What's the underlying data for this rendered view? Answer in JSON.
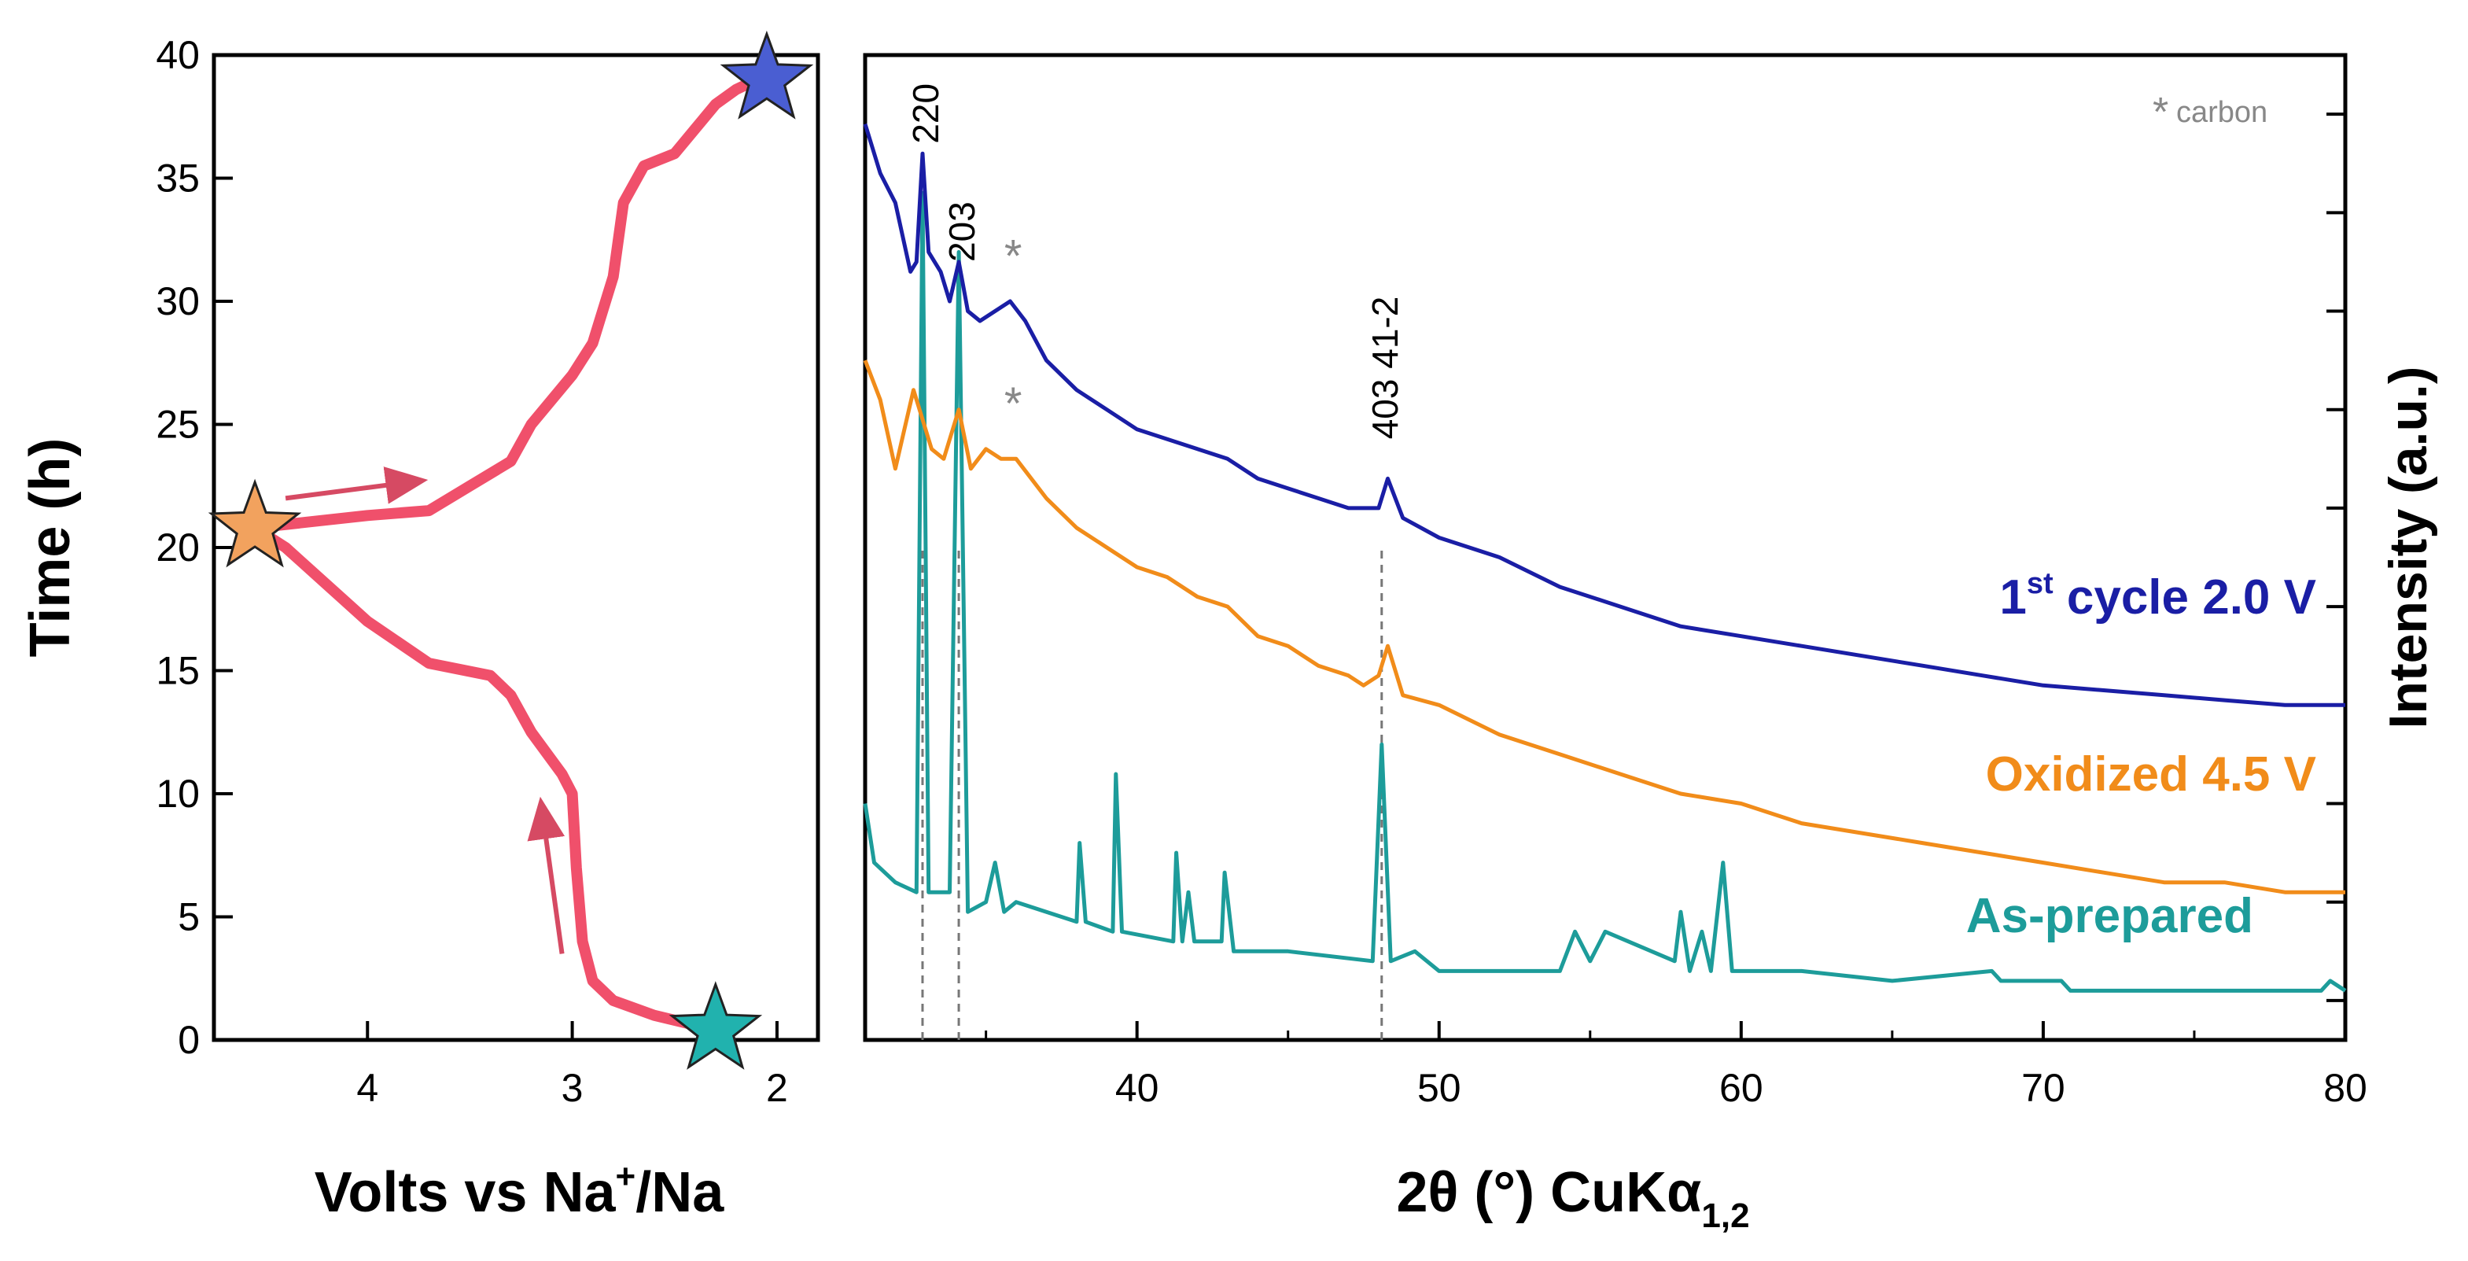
{
  "chart_data": [
    {
      "type": "line",
      "panel": "left",
      "xlabel": "Volts vs Na⁺/Na",
      "xlabel_parts": [
        "Volts vs Na",
        "+",
        "/Na"
      ],
      "ylabel": "Time (h)",
      "xlim": [
        4.75,
        1.8
      ],
      "ylim": [
        0,
        40
      ],
      "x_ticks": [
        4,
        3,
        2
      ],
      "x_tick_labels": [
        "4",
        "3",
        "2"
      ],
      "y_ticks": [
        0,
        5,
        10,
        15,
        20,
        25,
        30,
        35,
        40
      ],
      "y_tick_labels": [
        "0",
        "5",
        "10",
        "15",
        "20",
        "25",
        "30",
        "35",
        "40"
      ],
      "line_color": "#f0506b",
      "series": [
        {
          "name": "charge",
          "x": [
            2.3,
            2.6,
            2.8,
            2.9,
            2.95,
            2.98,
            3.0,
            3.05,
            3.2,
            3.3,
            3.4,
            3.7,
            4.0,
            4.2,
            4.4,
            4.55
          ],
          "y": [
            0.4,
            1.0,
            1.6,
            2.4,
            4.0,
            7.0,
            10.0,
            10.8,
            12.5,
            14.0,
            14.8,
            15.3,
            17.0,
            18.5,
            20.0,
            20.8
          ]
        },
        {
          "name": "discharge",
          "x": [
            4.55,
            4.0,
            3.7,
            3.5,
            3.3,
            3.2,
            3.0,
            2.9,
            2.8,
            2.75,
            2.65,
            2.5,
            2.4,
            2.3,
            2.2,
            2.1
          ],
          "y": [
            20.8,
            21.3,
            21.5,
            22.5,
            23.5,
            25.0,
            27.0,
            28.3,
            31.0,
            34.0,
            35.5,
            36.0,
            37.0,
            38.0,
            38.6,
            39.0
          ]
        }
      ],
      "markers": [
        {
          "name": "as-prepared-star",
          "x": 2.3,
          "y": 0.4,
          "color": "#21b2ae"
        },
        {
          "name": "oxidized-star",
          "x": 4.55,
          "y": 20.8,
          "color": "#f2a25e"
        },
        {
          "name": "cycled-star",
          "x": 2.05,
          "y": 39.0,
          "color": "#4a5ed2"
        }
      ],
      "arrows": [
        {
          "name": "discharge-direction-arrow",
          "from": [
            4.4,
            22.0
          ],
          "to": [
            3.75,
            22.7
          ]
        },
        {
          "name": "charge-direction-arrow",
          "from": [
            3.05,
            3.5
          ],
          "to": [
            3.15,
            9.5
          ]
        }
      ]
    },
    {
      "type": "line",
      "panel": "right",
      "xlabel": "2θ (°) CuKα",
      "xlabel_sub": "1,2",
      "ylabel": "Intensity (a.u.)",
      "xlim": [
        31,
        80
      ],
      "x_ticks": [
        40,
        50,
        60,
        70,
        80
      ],
      "x_tick_labels": [
        "40",
        "50",
        "60",
        "70",
        "80"
      ],
      "ylim": [
        0,
        1
      ],
      "reflections": [
        {
          "label": "220",
          "x": 32.9
        },
        {
          "label": "203",
          "x": 34.1
        },
        {
          "label": "403 41-2",
          "x": 48.1
        }
      ],
      "carbon_label": "carbon",
      "carbon_marker": "*",
      "series": [
        {
          "name": "As-prepared",
          "label": "As-prepared",
          "color": "#1d9c9a",
          "x": [
            31.0,
            31.3,
            32.0,
            32.7,
            32.9,
            33.1,
            33.8,
            34.1,
            34.4,
            35.0,
            35.3,
            35.6,
            36.0,
            38.0,
            38.1,
            38.3,
            39.2,
            39.3,
            39.5,
            41.2,
            41.3,
            41.5,
            41.7,
            41.9,
            42.8,
            42.9,
            43.2,
            45.0,
            47.8,
            48.1,
            48.4,
            49.2,
            50.0,
            54.0,
            54.5,
            55.0,
            55.5,
            57.8,
            58.0,
            58.3,
            58.7,
            59.0,
            59.4,
            59.7,
            61.0,
            62.0,
            65.0,
            68.3,
            68.6,
            70.6,
            70.9,
            79.2,
            79.5,
            80.0
          ],
          "y": [
            0.24,
            0.18,
            0.16,
            0.15,
            0.86,
            0.15,
            0.15,
            0.8,
            0.13,
            0.14,
            0.18,
            0.13,
            0.14,
            0.12,
            0.2,
            0.12,
            0.11,
            0.27,
            0.11,
            0.1,
            0.19,
            0.1,
            0.15,
            0.1,
            0.1,
            0.17,
            0.09,
            0.09,
            0.08,
            0.3,
            0.08,
            0.09,
            0.07,
            0.07,
            0.11,
            0.08,
            0.11,
            0.08,
            0.13,
            0.07,
            0.11,
            0.07,
            0.18,
            0.07,
            0.07,
            0.07,
            0.06,
            0.07,
            0.06,
            0.06,
            0.05,
            0.05,
            0.06,
            0.05
          ]
        },
        {
          "name": "Oxidized 4.5 V",
          "label": "Oxidized 4.5 V",
          "color": "#f18c1a",
          "x": [
            31.0,
            31.5,
            32.0,
            32.3,
            32.6,
            32.9,
            33.2,
            33.6,
            34.1,
            34.5,
            35.0,
            35.5,
            36.0,
            37.0,
            38.0,
            39.0,
            40.0,
            41.0,
            42.0,
            43.0,
            44.0,
            45.0,
            46.0,
            47.0,
            47.5,
            48.0,
            48.3,
            48.8,
            50.0,
            52.0,
            54.0,
            56.0,
            58.0,
            60.0,
            62.0,
            64.0,
            66.0,
            68.0,
            70.0,
            72.0,
            74.0,
            76.0,
            78.0,
            80.0
          ],
          "y": [
            0.69,
            0.65,
            0.58,
            0.62,
            0.66,
            0.63,
            0.6,
            0.59,
            0.64,
            0.58,
            0.6,
            0.59,
            0.59,
            0.55,
            0.52,
            0.5,
            0.48,
            0.47,
            0.45,
            0.44,
            0.41,
            0.4,
            0.38,
            0.37,
            0.36,
            0.37,
            0.4,
            0.35,
            0.34,
            0.31,
            0.29,
            0.27,
            0.25,
            0.24,
            0.22,
            0.21,
            0.2,
            0.19,
            0.18,
            0.17,
            0.16,
            0.16,
            0.15,
            0.15
          ]
        },
        {
          "name": "1st cycle 2.0 V",
          "label_main": "1",
          "label_sup": "st",
          "label_rest": " cycle 2.0 V",
          "color": "#1a1ea5",
          "x": [
            31.0,
            31.5,
            32.0,
            32.5,
            32.7,
            32.9,
            33.1,
            33.5,
            33.8,
            34.1,
            34.4,
            34.8,
            35.3,
            35.8,
            36.3,
            37.0,
            38.0,
            39.0,
            40.0,
            41.0,
            42.0,
            43.0,
            44.0,
            45.0,
            46.0,
            47.0,
            47.5,
            48.0,
            48.3,
            48.8,
            50.0,
            52.0,
            54.0,
            56.0,
            58.0,
            60.0,
            62.0,
            64.0,
            66.0,
            68.0,
            70.0,
            72.0,
            74.0,
            76.0,
            78.0,
            80.0
          ],
          "y": [
            0.93,
            0.88,
            0.85,
            0.78,
            0.79,
            0.9,
            0.8,
            0.78,
            0.75,
            0.79,
            0.74,
            0.73,
            0.74,
            0.75,
            0.73,
            0.69,
            0.66,
            0.64,
            0.62,
            0.61,
            0.6,
            0.59,
            0.57,
            0.56,
            0.55,
            0.54,
            0.54,
            0.54,
            0.57,
            0.53,
            0.51,
            0.49,
            0.46,
            0.44,
            0.42,
            0.41,
            0.4,
            0.39,
            0.38,
            0.37,
            0.36,
            0.355,
            0.35,
            0.345,
            0.34,
            0.34
          ]
        }
      ],
      "carbon_asterisks": [
        {
          "series": "1st cycle 2.0 V",
          "x": 35.9,
          "y": 0.78
        },
        {
          "series": "Oxidized 4.5 V",
          "x": 35.9,
          "y": 0.63
        }
      ],
      "label_placement": "right"
    }
  ]
}
